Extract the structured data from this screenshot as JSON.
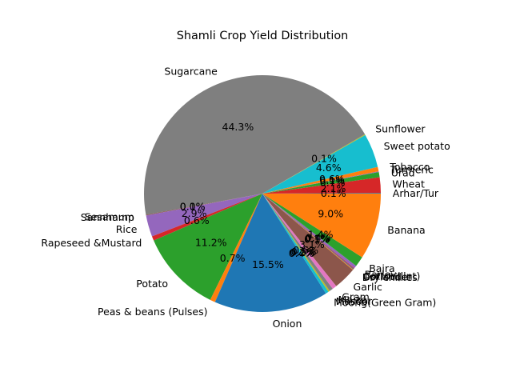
{
  "chart_data": {
    "type": "pie",
    "title": "Shamli Crop Yield Distribution",
    "start_angle_deg": 0,
    "direction": "counterclockwise",
    "percent_format": "one-decimal",
    "slices": [
      {
        "label": "Arhar/Tur",
        "value": 0.1,
        "color": "#1f77b4"
      },
      {
        "label": "Wheat",
        "value": 2.1,
        "color": "#d62728"
      },
      {
        "label": "Urad",
        "value": 0.7,
        "color": "#2ca02c"
      },
      {
        "label": "Turmeric",
        "value": 0.1,
        "color": "#9467bd"
      },
      {
        "label": "Tobacco",
        "value": 0.6,
        "color": "#ff7f0e"
      },
      {
        "label": "Sweet potato",
        "value": 4.6,
        "color": "#17becf"
      },
      {
        "label": "Sunflower",
        "value": 0.1,
        "color": "#bcbd22"
      },
      {
        "label": "Sugarcane",
        "value": 44.3,
        "color": "#7f7f7f"
      },
      {
        "label": "Sesamum",
        "value": 0.0,
        "color": "#e377c2"
      },
      {
        "label": "Sannhamp",
        "value": 0.1,
        "color": "#8c564b"
      },
      {
        "label": "Rice",
        "value": 2.9,
        "color": "#9467bd"
      },
      {
        "label": "Rapeseed &Mustard",
        "value": 0.6,
        "color": "#d62728"
      },
      {
        "label": "Potato",
        "value": 11.2,
        "color": "#2ca02c"
      },
      {
        "label": "Peas & beans (Pulses)",
        "value": 0.7,
        "color": "#ff7f0e"
      },
      {
        "label": "Onion",
        "value": 15.5,
        "color": "#1f77b4"
      },
      {
        "label": "Moong(Green Gram)",
        "value": 0.4,
        "color": "#17becf"
      },
      {
        "label": "Masoor",
        "value": 0.2,
        "color": "#bcbd22"
      },
      {
        "label": "Maize",
        "value": 0.5,
        "color": "#7f7f7f"
      },
      {
        "label": "Gram",
        "value": 0.6,
        "color": "#e377c2"
      },
      {
        "label": "Garlic",
        "value": 3.1,
        "color": "#8c564b"
      },
      {
        "label": "Dry chillies",
        "value": 0.1,
        "color": "#ff7f0e"
      },
      {
        "label": "Coriander",
        "value": 0.1,
        "color": "#1f77b4"
      },
      {
        "label": "Cotton(lint)",
        "value": 0.1,
        "color": "#d62728"
      },
      {
        "label": "Barley",
        "value": 0.4,
        "color": "#9467bd"
      },
      {
        "label": "Bajra",
        "value": 1.4,
        "color": "#2ca02c"
      },
      {
        "label": "Banana",
        "value": 9.0,
        "color": "#ff7f0e"
      }
    ]
  }
}
